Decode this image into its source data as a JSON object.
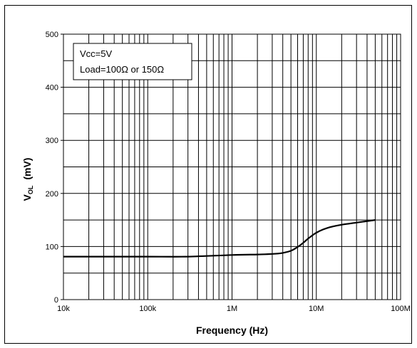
{
  "chart_data": {
    "type": "line",
    "xscale": "log",
    "xlim": [
      10000,
      100000000
    ],
    "ylim": [
      0,
      500
    ],
    "grid": true,
    "xlabel": "Frequency (Hz)",
    "ylabel_main": "V",
    "ylabel_sub": "OL",
    "ylabel_unit": "(mV)",
    "x_tick_labels": [
      "10k",
      "100k",
      "1M",
      "10M",
      "100M"
    ],
    "y_tick_labels": [
      "0",
      "100",
      "200",
      "300",
      "400",
      "500"
    ],
    "y_ticks": [
      0,
      100,
      200,
      300,
      400,
      500
    ],
    "annotation": [
      "Vcc=5V",
      "Load=100Ω or 150Ω"
    ],
    "series": [
      {
        "x": [
          10000,
          30000,
          100000,
          300000,
          1000000,
          2000000,
          3000000,
          4000000,
          5000000,
          6000000,
          7000000,
          8000000,
          9000000,
          10000000,
          12000000,
          15000000,
          20000000,
          30000000,
          50000000
        ],
        "y": [
          81,
          81,
          81,
          81,
          84,
          85,
          86,
          88,
          92,
          99,
          107,
          115,
          121,
          126,
          132,
          137,
          141,
          145,
          150
        ]
      }
    ]
  }
}
